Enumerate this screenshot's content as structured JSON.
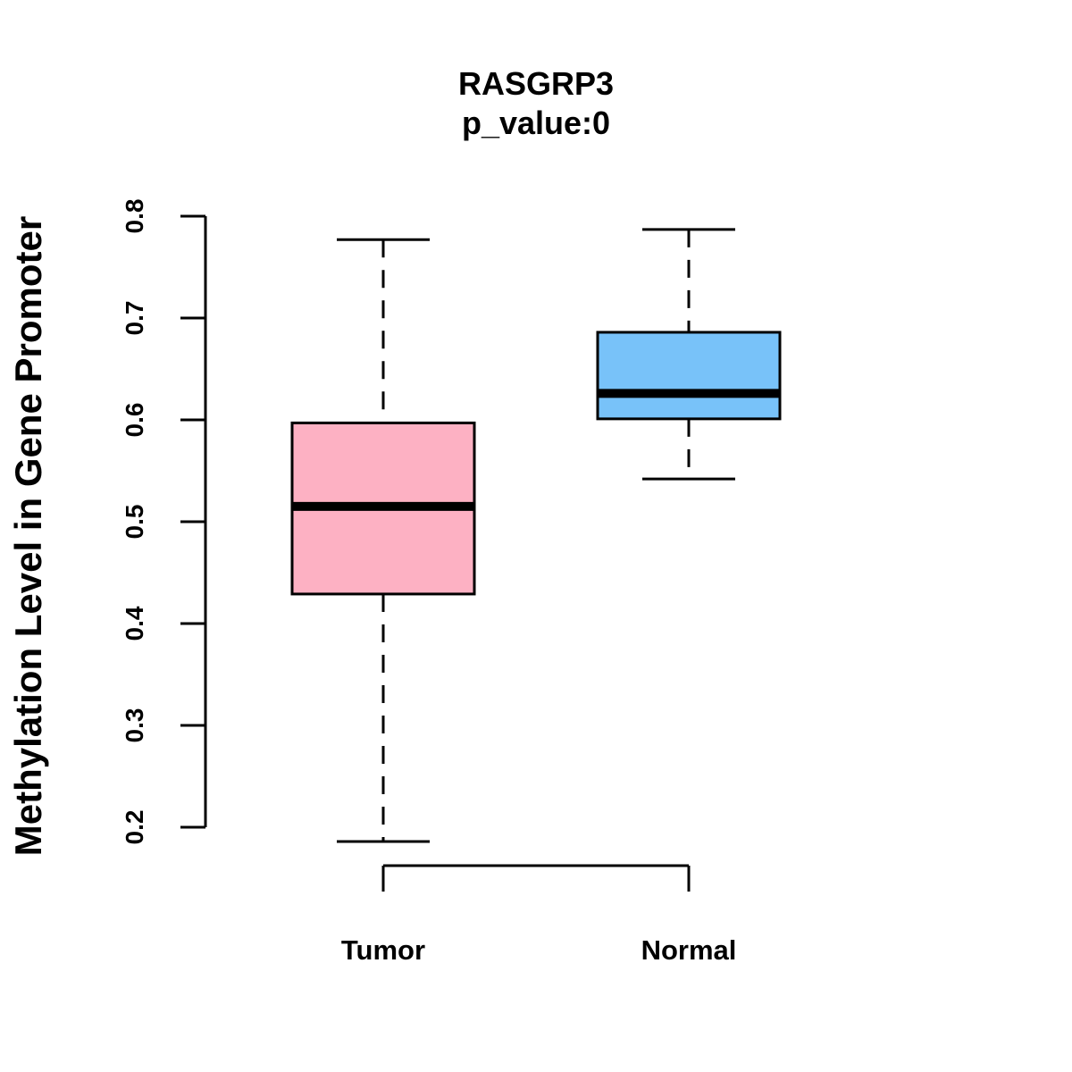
{
  "chart_data": {
    "type": "box",
    "title": "RASGRP3",
    "subtitle": "p_value:0",
    "xlabel": "",
    "ylabel": "Methylation Level in Gene Promoter",
    "ylim": [
      0.2,
      0.8
    ],
    "y_ticks": [
      "0.2",
      "0.3",
      "0.4",
      "0.5",
      "0.6",
      "0.7",
      "0.8"
    ],
    "categories": [
      "Tumor",
      "Normal"
    ],
    "series": [
      {
        "name": "Tumor",
        "min": 0.186,
        "q1": 0.429,
        "median": 0.515,
        "q3": 0.597,
        "max": 0.777,
        "color": "#FDB1C3"
      },
      {
        "name": "Normal",
        "min": 0.542,
        "q1": 0.601,
        "median": 0.626,
        "q3": 0.686,
        "max": 0.787,
        "color": "#78C2F9"
      }
    ],
    "grid": false,
    "legend": "none"
  }
}
